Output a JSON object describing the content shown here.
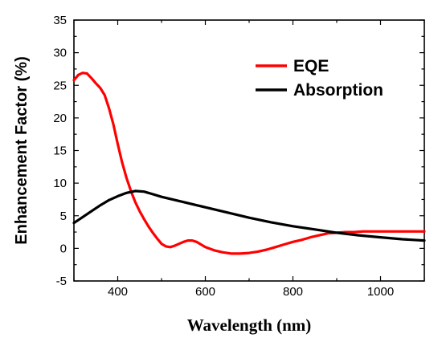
{
  "chart_data": {
    "type": "line",
    "xlabel": "Wavelength (nm)",
    "ylabel": "Enhancement Factor (%)",
    "xlim": [
      300,
      1100
    ],
    "ylim": [
      -5,
      35
    ],
    "xticks": [
      400,
      600,
      800,
      1000
    ],
    "yticks": [
      -5,
      0,
      5,
      10,
      15,
      20,
      25,
      30,
      35
    ],
    "grid": false,
    "legend_position": "top-right",
    "series": [
      {
        "name": "EQE",
        "color": "#ff0000",
        "points": [
          [
            300,
            25.8
          ],
          [
            310,
            26.6
          ],
          [
            320,
            26.9
          ],
          [
            330,
            26.8
          ],
          [
            340,
            26.1
          ],
          [
            350,
            25.3
          ],
          [
            360,
            24.6
          ],
          [
            370,
            23.5
          ],
          [
            380,
            21.5
          ],
          [
            390,
            19.0
          ],
          [
            400,
            16.0
          ],
          [
            410,
            13.2
          ],
          [
            420,
            10.8
          ],
          [
            430,
            8.8
          ],
          [
            440,
            7.1
          ],
          [
            450,
            5.7
          ],
          [
            460,
            4.5
          ],
          [
            470,
            3.4
          ],
          [
            480,
            2.4
          ],
          [
            490,
            1.5
          ],
          [
            500,
            0.7
          ],
          [
            510,
            0.3
          ],
          [
            520,
            0.2
          ],
          [
            530,
            0.4
          ],
          [
            540,
            0.7
          ],
          [
            550,
            1.0
          ],
          [
            560,
            1.2
          ],
          [
            570,
            1.2
          ],
          [
            580,
            1.0
          ],
          [
            590,
            0.6
          ],
          [
            600,
            0.2
          ],
          [
            620,
            -0.3
          ],
          [
            640,
            -0.6
          ],
          [
            660,
            -0.8
          ],
          [
            680,
            -0.8
          ],
          [
            700,
            -0.7
          ],
          [
            720,
            -0.5
          ],
          [
            740,
            -0.2
          ],
          [
            760,
            0.2
          ],
          [
            780,
            0.6
          ],
          [
            800,
            1.0
          ],
          [
            820,
            1.3
          ],
          [
            840,
            1.7
          ],
          [
            860,
            2.0
          ],
          [
            880,
            2.3
          ],
          [
            900,
            2.4
          ],
          [
            920,
            2.5
          ],
          [
            940,
            2.5
          ],
          [
            960,
            2.6
          ],
          [
            980,
            2.6
          ],
          [
            1000,
            2.6
          ],
          [
            1050,
            2.6
          ],
          [
            1100,
            2.6
          ]
        ]
      },
      {
        "name": "Absorption",
        "color": "#000000",
        "points": [
          [
            300,
            3.9
          ],
          [
            320,
            4.8
          ],
          [
            340,
            5.7
          ],
          [
            360,
            6.6
          ],
          [
            380,
            7.4
          ],
          [
            400,
            8.0
          ],
          [
            420,
            8.5
          ],
          [
            440,
            8.8
          ],
          [
            460,
            8.7
          ],
          [
            480,
            8.3
          ],
          [
            500,
            7.9
          ],
          [
            550,
            7.1
          ],
          [
            600,
            6.3
          ],
          [
            650,
            5.5
          ],
          [
            700,
            4.7
          ],
          [
            750,
            4.0
          ],
          [
            800,
            3.4
          ],
          [
            850,
            2.9
          ],
          [
            900,
            2.4
          ],
          [
            950,
            2.0
          ],
          [
            1000,
            1.7
          ],
          [
            1050,
            1.4
          ],
          [
            1100,
            1.2
          ]
        ]
      }
    ]
  }
}
